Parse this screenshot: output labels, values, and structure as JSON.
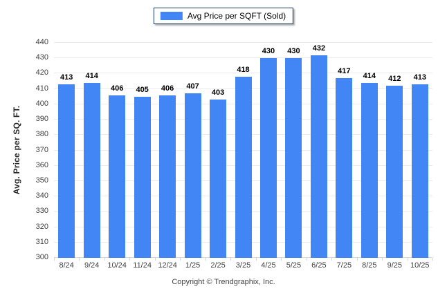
{
  "legend": {
    "label": "Avg Price per SQFT (Sold)",
    "swatch_color": "#4285f4"
  },
  "y_axis": {
    "title": "Avg. Price per SQ. FT.",
    "min": 300,
    "max": 440,
    "step": 10
  },
  "footer": {
    "copyright": "Copyright © Trendgraphix, Inc."
  },
  "colors": {
    "bar": "#4285f4",
    "gridline": "#ebebeb",
    "axis_line": "#d6d6d6",
    "tick_text": "#3f3f3f",
    "value_label": "#000000",
    "legend_border": "#17375e"
  },
  "chart_data": {
    "type": "bar",
    "title": "Avg Price per SQFT (Sold)",
    "categories": [
      "8/24",
      "9/24",
      "10/24",
      "11/24",
      "12/24",
      "1/25",
      "2/25",
      "3/25",
      "4/25",
      "5/25",
      "6/25",
      "7/25",
      "8/25",
      "9/25",
      "10/25"
    ],
    "values": [
      413,
      414,
      406,
      405,
      406,
      407,
      403,
      418,
      430,
      430,
      432,
      417,
      414,
      412,
      413
    ],
    "xlabel": "",
    "ylabel": "Avg. Price per SQ. FT.",
    "ylim": [
      300,
      440
    ],
    "ytick_step": 10,
    "grid": true,
    "value_labels": true,
    "legend_position": "top-center",
    "legend_entries": [
      "Avg Price per SQFT (Sold)"
    ],
    "bar_color": "#4285f4"
  }
}
